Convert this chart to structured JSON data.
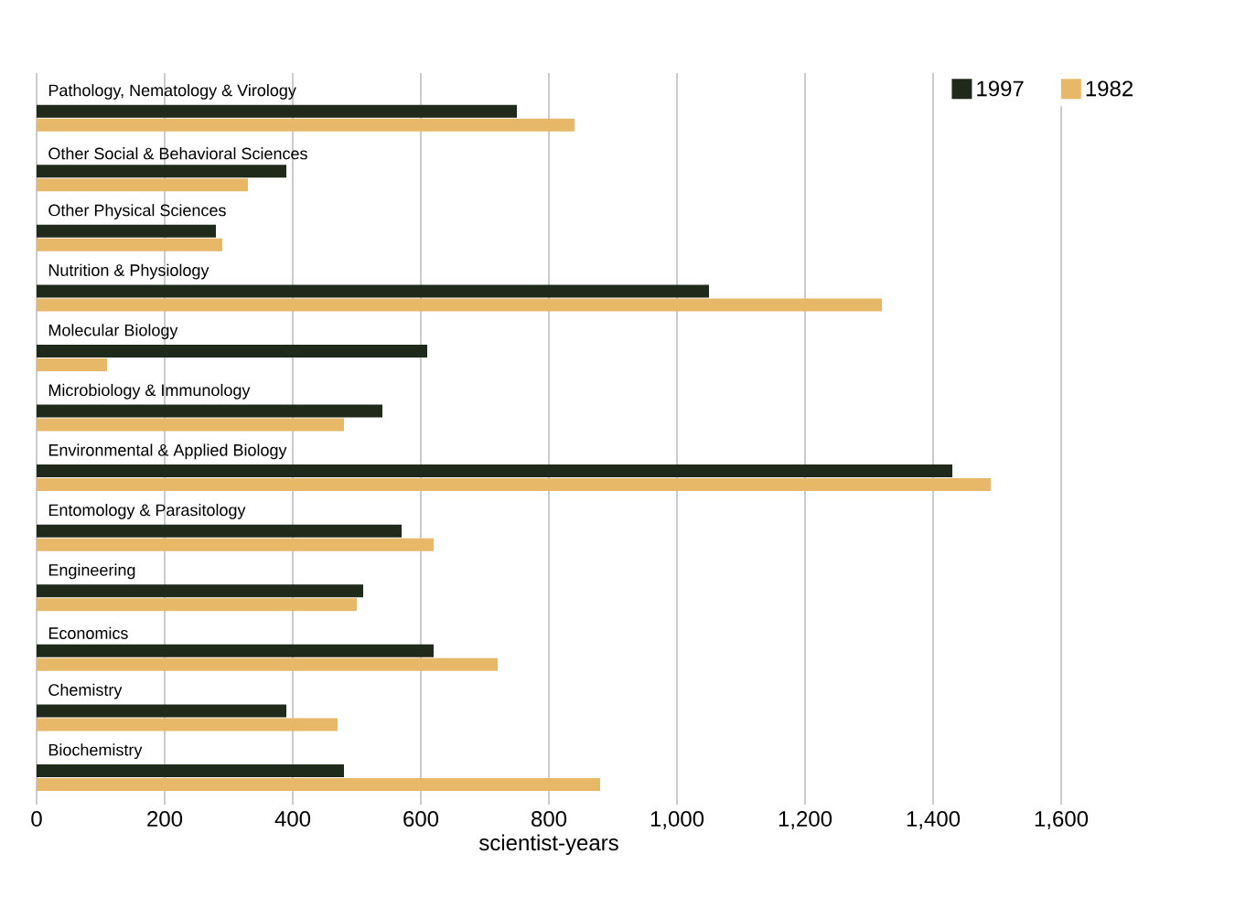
{
  "chart_data": {
    "type": "bar",
    "orientation": "horizontal",
    "xlabel": "scientist-years",
    "categories": [
      "Pathology, Nematology & Virology",
      "Other Social & Behavioral Sciences",
      "Other Physical Sciences",
      "Nutrition & Physiology",
      "Molecular Biology",
      "Microbiology & Immunology",
      "Environmental & Applied Biology",
      "Entomology & Parasitology",
      "Engineering",
      "Economics",
      "Chemistry",
      "Biochemistry"
    ],
    "series": [
      {
        "name": "1997",
        "color": "#1f2a1a",
        "values": [
          750,
          390,
          280,
          1050,
          610,
          540,
          1430,
          570,
          510,
          620,
          390,
          480
        ]
      },
      {
        "name": "1982",
        "color": "#e6b867",
        "values": [
          840,
          330,
          290,
          1320,
          110,
          480,
          1490,
          620,
          500,
          720,
          470,
          880
        ]
      }
    ],
    "xlim": [
      0,
      1600
    ],
    "xticks": [
      0,
      200,
      400,
      600,
      800,
      {
        "value": 1000,
        "label": "1,000"
      },
      {
        "value": 1200,
        "label": "1,200"
      },
      {
        "value": 1400,
        "label": "1,400"
      },
      {
        "value": 1600,
        "label": "1,600"
      }
    ],
    "grid": "x",
    "legend": "top right"
  }
}
